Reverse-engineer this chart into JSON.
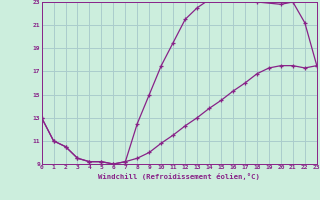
{
  "xlabel": "Windchill (Refroidissement éolien,°C)",
  "bg_color": "#cceedd",
  "grid_color": "#aacccc",
  "line_color": "#882288",
  "xmin": 0,
  "xmax": 23,
  "ymin": 9,
  "ymax": 23,
  "yticks": [
    9,
    11,
    13,
    15,
    17,
    19,
    21,
    23
  ],
  "xticks": [
    0,
    1,
    2,
    3,
    4,
    5,
    6,
    7,
    8,
    9,
    10,
    11,
    12,
    13,
    14,
    15,
    16,
    17,
    18,
    19,
    20,
    21,
    22,
    23
  ],
  "line1_x": [
    0,
    1,
    2,
    3,
    4,
    5,
    6,
    7,
    8,
    9,
    10,
    11,
    12,
    13,
    14,
    15,
    16,
    17,
    18,
    20,
    21,
    22,
    23
  ],
  "line1_y": [
    13,
    11,
    10.5,
    9.5,
    9.2,
    9.2,
    9.0,
    9.2,
    12.5,
    15.0,
    17.5,
    19.5,
    21.5,
    22.5,
    23.2,
    23.5,
    23.3,
    23.2,
    23.0,
    22.8,
    23.0,
    21.2,
    17.5
  ],
  "line2_x": [
    0,
    1,
    2,
    3,
    4,
    5,
    6,
    7,
    8,
    9,
    10,
    11,
    12,
    13,
    14,
    15,
    16,
    17,
    18,
    19,
    20,
    21,
    22,
    23
  ],
  "line2_y": [
    13,
    11,
    10.5,
    9.5,
    9.2,
    9.2,
    9.0,
    9.2,
    9.5,
    10.0,
    10.8,
    11.5,
    12.3,
    13.0,
    13.8,
    14.5,
    15.3,
    16.0,
    16.8,
    17.3,
    17.5,
    17.5,
    17.3,
    17.5
  ]
}
